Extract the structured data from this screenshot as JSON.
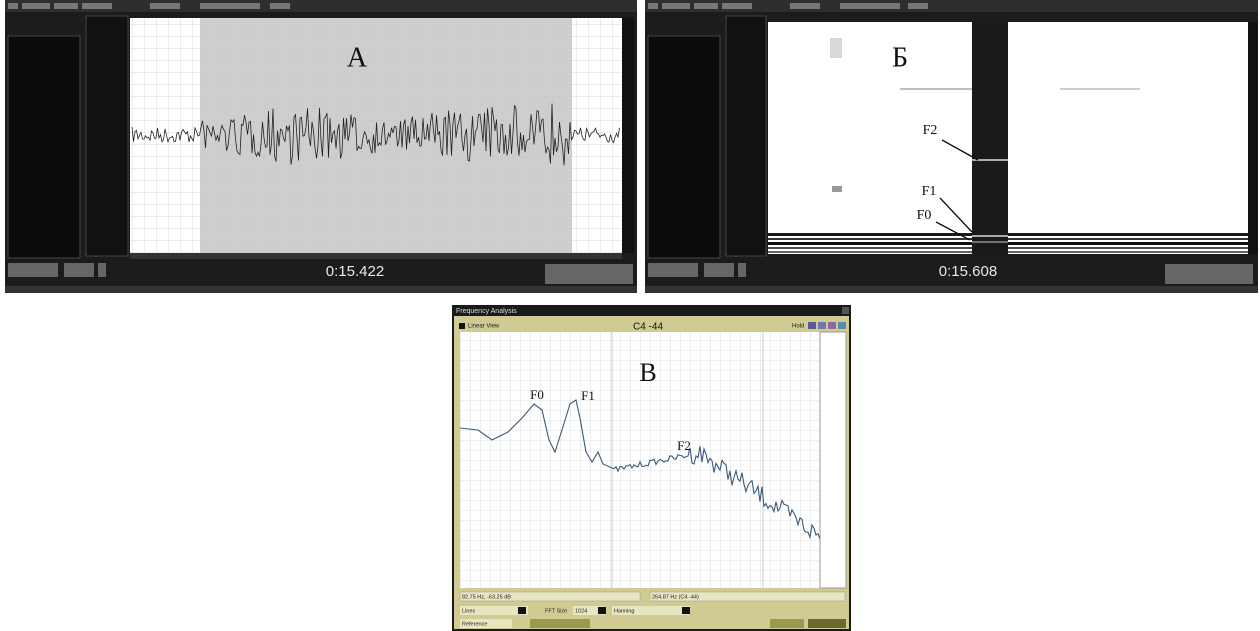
{
  "panels": [
    {
      "label": "А",
      "time": "0:15.422"
    },
    {
      "label": "Б",
      "time": "0:15.608",
      "annotations": [
        "F2",
        "F1",
        "F0"
      ]
    },
    {
      "label": "В",
      "window_title": "Frequency Analysis",
      "note": "C4 -44",
      "view": "Linear View",
      "hold": "Hold",
      "annotations": [
        "F0",
        "F1",
        "F2"
      ],
      "status_left": "82.75 Hz, -63.25 dB",
      "status_right": "264.87 Hz (C4 -44)",
      "mode": "Lines",
      "fft_label": "FFT Size",
      "fft_value": "1024",
      "window_function": "Hanning",
      "reference": "Reference"
    }
  ]
}
